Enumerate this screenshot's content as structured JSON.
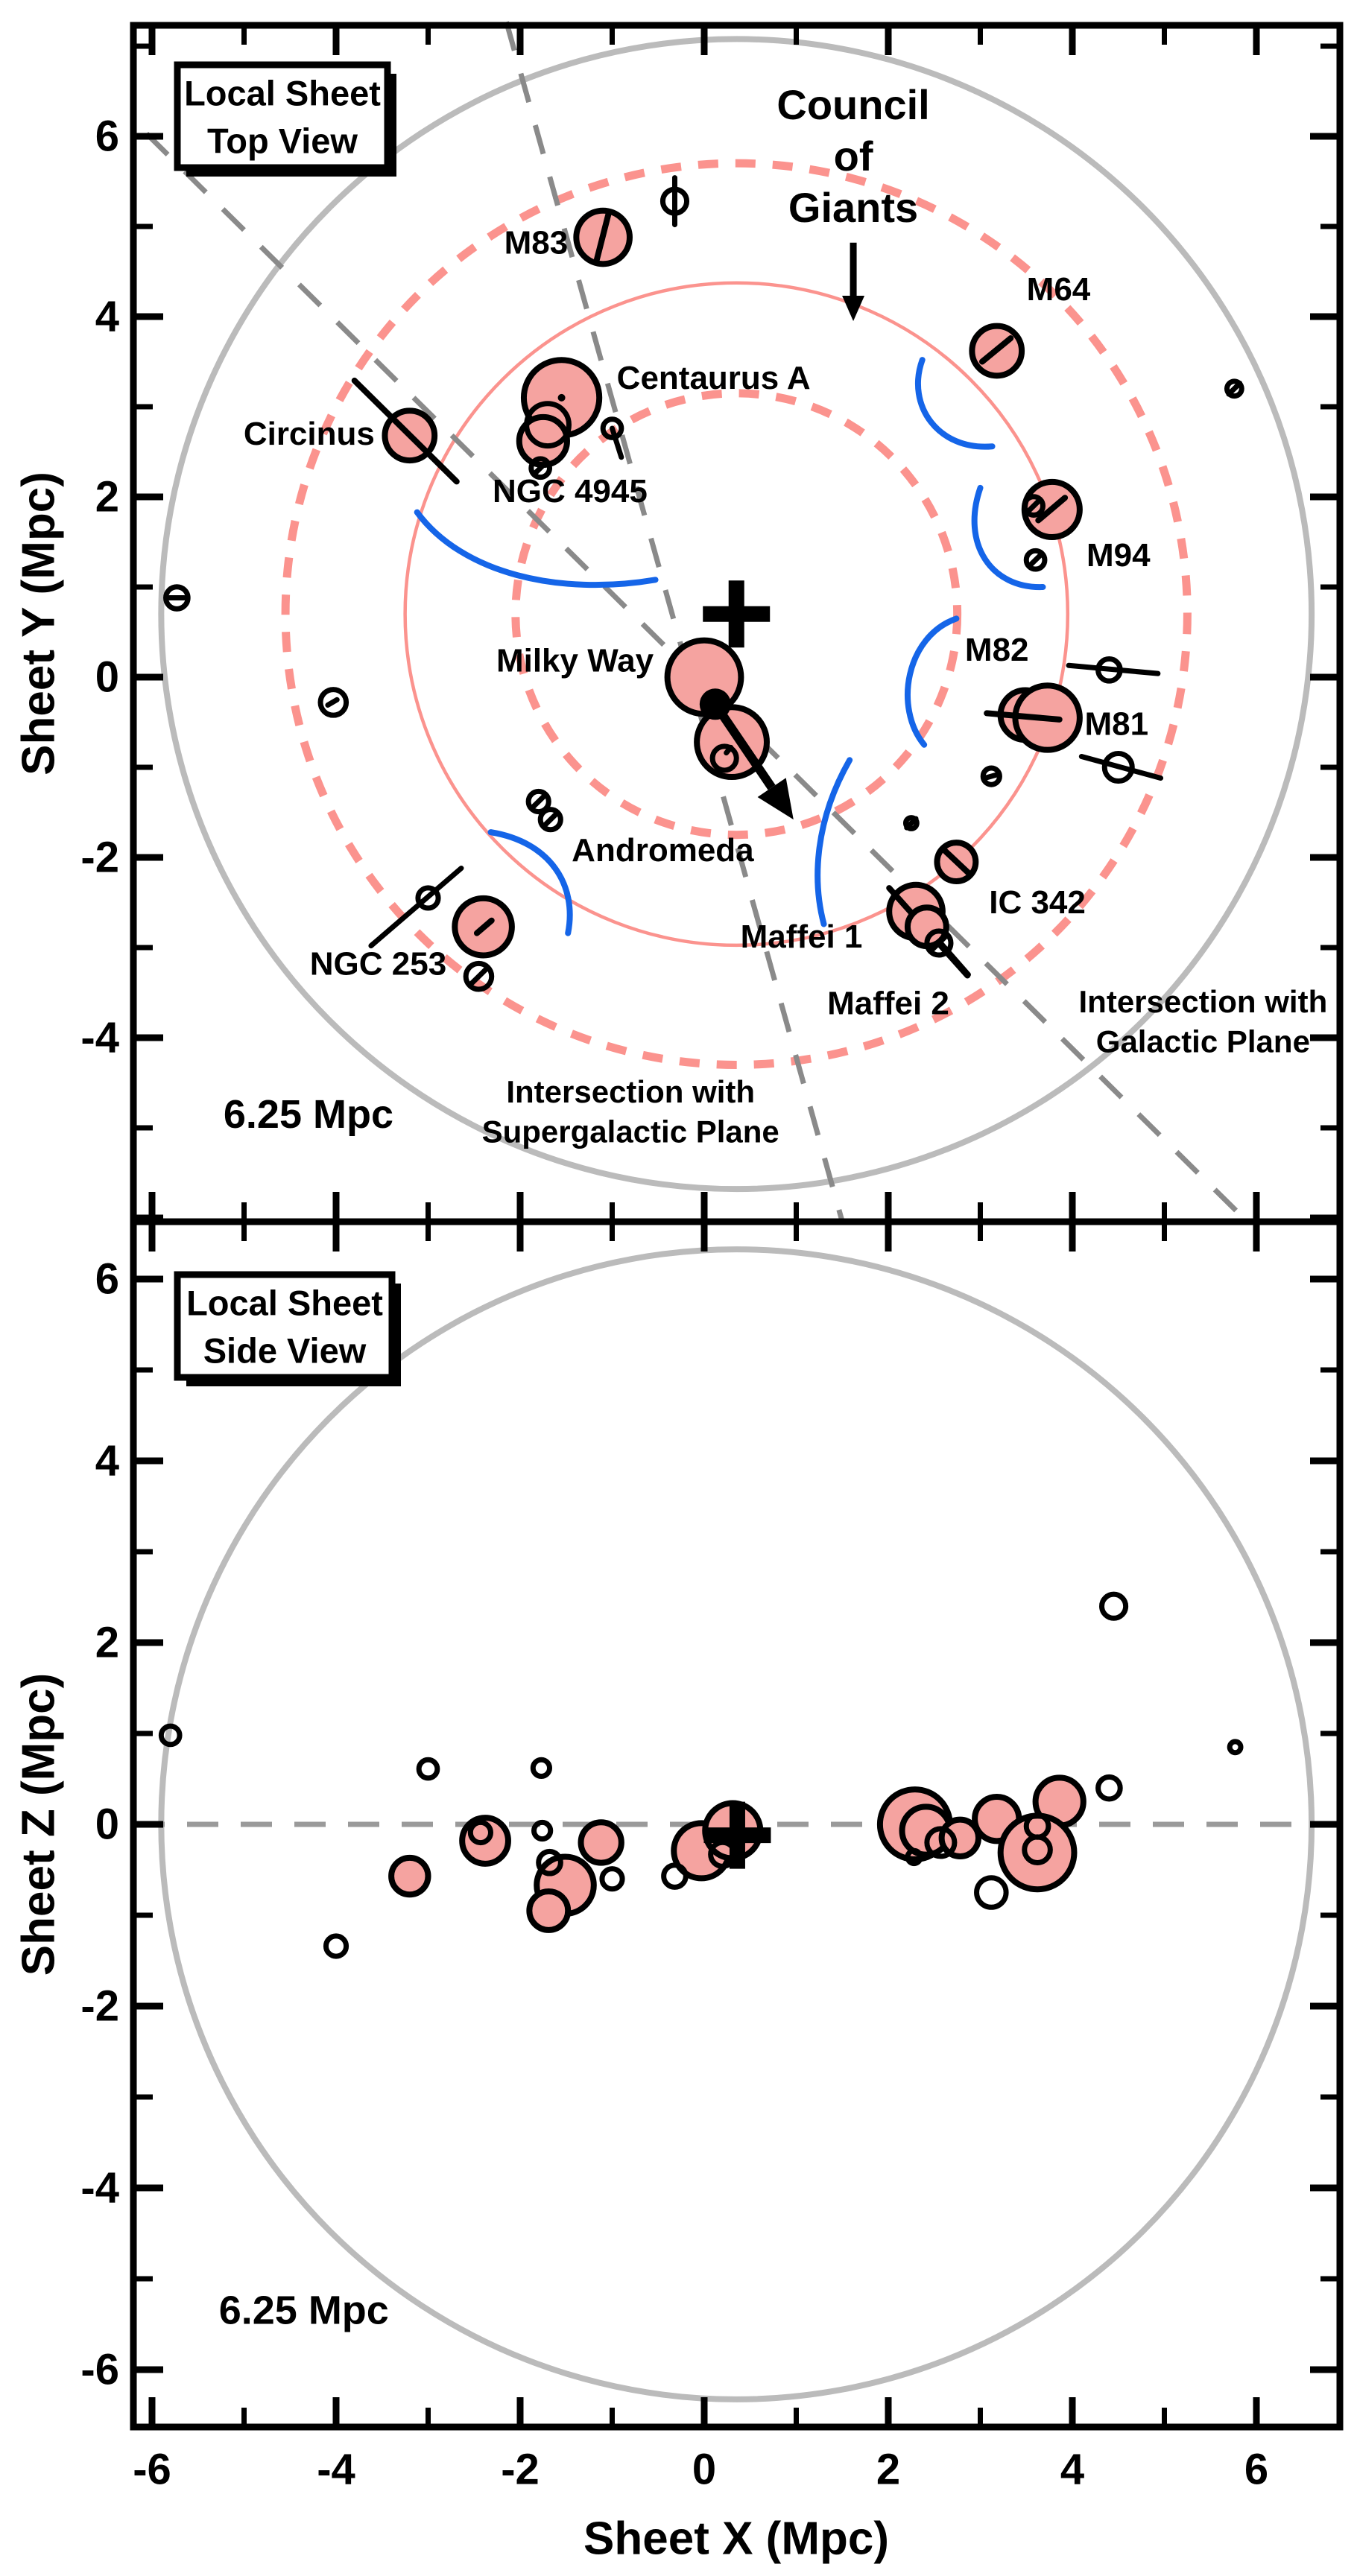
{
  "chart_data": {
    "type": "scatter",
    "title": "",
    "xlabel": "Sheet X (Mpc)",
    "xticks": [
      -6,
      -4,
      -2,
      0,
      2,
      4,
      6
    ],
    "xlim": [
      -6.2,
      6.9
    ],
    "colors": {
      "giant_fill": "#F5A3A0",
      "ring_pink": "#FB938E",
      "sheet_gray": "#BBBBBB",
      "plane_dash_gray": "#8A8A8A",
      "zero_dash_gray": "#9A9A9A",
      "arc_blue": "#1565E8",
      "ink": "#000000"
    },
    "top_panel": {
      "box_label": [
        "Local Sheet",
        "Top View"
      ],
      "ylabel": "Sheet Y (Mpc)",
      "yticks": [
        6,
        4,
        2,
        0,
        -2,
        -4
      ],
      "ylim": [
        -6.04,
        7.23
      ],
      "scale_label": "6.25 Mpc",
      "scale_label_pos": [
        -4.3,
        -4.85
      ],
      "council_label": [
        "Council",
        "of",
        "Giants"
      ],
      "council_label_pos": [
        1.62,
        6.35,
        5.78,
        5.21
      ],
      "council_arrow": [
        [
          1.62,
          4.82
        ],
        [
          1.62,
          3.95
        ]
      ],
      "supergalactic_label": [
        "Intersection with",
        "Supergalactic Plane"
      ],
      "supergalactic_label_pos": [
        -0.8,
        -4.6,
        -5.04
      ],
      "galactic_label": [
        "Intersection with",
        "Galactic Plane"
      ],
      "galactic_label_pos": [
        5.42,
        -3.6,
        -4.04
      ],
      "ring_center": [
        0.35,
        0.7
      ],
      "sheet_radius": 6.25,
      "council_ring_radius": 3.6,
      "council_ring_band": [
        2.4,
        4.9
      ],
      "galactic_plane_line": [
        [
          -6.06,
          6.03
        ],
        [
          5.9,
          -6.04
        ]
      ],
      "supergalactic_plane_line": [
        [
          -2.15,
          7.27
        ],
        [
          1.5,
          -6.04
        ]
      ],
      "milky_way_dot": [
        0.12,
        -0.3
      ],
      "motion_arrow": [
        [
          0.12,
          -0.3
        ],
        [
          0.97,
          -1.58
        ]
      ],
      "giants": [
        {
          "name": "Milky Way",
          "c": [
            0.0,
            0.0,
            0.4
          ],
          "label": [
            -0.55,
            0.18,
            "end"
          ]
        },
        {
          "name": "Andromeda",
          "c": [
            0.3,
            -0.72,
            0.38
          ],
          "label": [
            -0.45,
            -1.92,
            "middle"
          ]
        },
        {
          "name": "M83",
          "c": [
            -1.1,
            4.88,
            0.29
          ],
          "label": [
            -1.48,
            4.82,
            "end"
          ],
          "marks": [
            [
              -1.04,
              5.14,
              -1.17,
              4.62
            ]
          ]
        },
        {
          "name": "Centaurus A",
          "c": [
            -1.55,
            3.1,
            0.41
          ],
          "label": [
            -0.95,
            3.32,
            "start"
          ],
          "dot": true
        },
        {
          "name": "NGC 4945",
          "c": [
            -1.75,
            2.62,
            0.26
          ],
          "label": [
            -2.3,
            2.06,
            "start"
          ]
        },
        {
          "name": "Circinus",
          "c": [
            -3.2,
            2.68,
            0.27
          ],
          "label": [
            -3.58,
            2.7,
            "end"
          ],
          "marks": [
            [
              -3.8,
              3.29,
              -2.69,
              2.17
            ]
          ]
        },
        {
          "name": "M64",
          "c": [
            3.18,
            3.62,
            0.27
          ],
          "label": [
            3.85,
            4.3,
            "middle"
          ],
          "marks": [
            [
              3.02,
              3.5,
              3.33,
              3.76
            ]
          ]
        },
        {
          "name": "M94",
          "c": [
            3.78,
            1.86,
            0.3
          ],
          "label": [
            4.5,
            1.35,
            "middle"
          ],
          "marks": [
            [
              3.63,
              1.74,
              3.92,
              1.99
            ]
          ]
        },
        {
          "name": "M82",
          "c": [
            3.49,
            -0.42,
            0.27
          ],
          "label": [
            3.18,
            0.3,
            "middle"
          ]
        },
        {
          "name": "M81",
          "c": [
            3.73,
            -0.45,
            0.35
          ],
          "label": [
            4.48,
            -0.52,
            "middle"
          ],
          "marks": [
            [
              3.07,
              -0.4,
              3.86,
              -0.47
            ]
          ]
        },
        {
          "name": "IC 342",
          "c": [
            2.74,
            -2.05,
            0.21
          ],
          "label": [
            3.62,
            -2.5,
            "middle"
          ],
          "marks": [
            [
              2.62,
              -1.93,
              2.88,
              -2.18
            ]
          ]
        },
        {
          "name": "Maffei 1",
          "c": [
            2.3,
            -2.6,
            0.29
          ],
          "label": [
            1.72,
            -2.88,
            "end"
          ],
          "marks": [
            [
              2.01,
              -2.34,
              2.86,
              -3.31
            ]
          ]
        },
        {
          "name": "Maffei 2",
          "c": [
            2.42,
            -2.77,
            0.21
          ],
          "label": [
            2.0,
            -3.62,
            "middle"
          ]
        },
        {
          "name": "NGC 253",
          "c": [
            -2.4,
            -2.77,
            0.31
          ],
          "label": [
            -2.8,
            -3.18,
            "end"
          ],
          "marks": [
            [
              -2.47,
              -2.84,
              -2.31,
              -2.7
            ]
          ]
        }
      ],
      "dwarfs": [
        {
          "c": [
            -0.32,
            5.28,
            0.13
          ],
          "marks": [
            [
              -0.32,
              5.54,
              -0.32,
              5.02
            ]
          ]
        },
        {
          "c": [
            -1.7,
            2.8,
            0.23
          ]
        },
        {
          "c": [
            -1.78,
            2.32,
            0.1
          ],
          "marks": [
            [
              -1.84,
              2.26,
              -1.72,
              2.38
            ]
          ]
        },
        {
          "c": [
            -1.0,
            2.76,
            0.1
          ],
          "marks": [
            [
              -1.0,
              2.76,
              -0.9,
              2.44
            ]
          ]
        },
        {
          "c": [
            -5.73,
            0.88,
            0.12
          ],
          "marks": [
            [
              -5.81,
              0.88,
              -5.65,
              0.88
            ]
          ]
        },
        {
          "c": [
            -4.03,
            -0.28,
            0.14
          ],
          "marks": [
            [
              -4.09,
              -0.31,
              -3.99,
              -0.25
            ]
          ]
        },
        {
          "c": [
            -1.8,
            -1.38,
            0.11
          ],
          "marks": [
            [
              -1.86,
              -1.44,
              -1.74,
              -1.32
            ]
          ]
        },
        {
          "c": [
            -1.67,
            -1.58,
            0.11
          ],
          "marks": [
            [
              -1.73,
              -1.64,
              -1.61,
              -1.52
            ]
          ]
        },
        {
          "c": [
            -3.0,
            -2.45,
            0.11
          ],
          "marks": [
            [
              -3.62,
              -2.98,
              -2.64,
              -2.12
            ]
          ]
        },
        {
          "c": [
            -2.45,
            -3.32,
            0.14
          ],
          "marks": [
            [
              -2.53,
              -3.4,
              -2.37,
              -3.24
            ]
          ]
        },
        {
          "c": [
            0.22,
            -0.9,
            0.13
          ],
          "marks": [
            [
              0.24,
              -0.84,
              0.29,
              -0.78
            ]
          ]
        },
        {
          "c": [
            2.55,
            -2.95,
            0.13
          ],
          "marks": [
            [
              2.47,
              -3.03,
              2.63,
              -2.87
            ],
            [
              2.57,
              -2.95,
              2.87,
              -3.3
            ]
          ]
        },
        {
          "c": [
            2.25,
            -1.62,
            0.06
          ],
          "marks": [
            [
              2.2,
              -1.67,
              2.3,
              -1.57
            ]
          ]
        },
        {
          "c": [
            4.4,
            0.08,
            0.12
          ],
          "marks": [
            [
              3.96,
              0.13,
              4.93,
              0.04
            ]
          ]
        },
        {
          "c": [
            4.5,
            -1.0,
            0.15
          ],
          "marks": [
            [
              4.1,
              -0.88,
              4.96,
              -1.12
            ]
          ]
        },
        {
          "c": [
            3.12,
            -1.1,
            0.09
          ],
          "marks": [
            [
              3.05,
              -1.12,
              3.19,
              -1.08
            ]
          ]
        },
        {
          "c": [
            3.58,
            1.9,
            0.1
          ],
          "marks": [
            [
              3.51,
              1.83,
              3.65,
              1.97
            ]
          ]
        },
        {
          "c": [
            3.6,
            1.3,
            0.1
          ],
          "marks": [
            [
              3.53,
              1.23,
              3.67,
              1.37
            ]
          ]
        },
        {
          "c": [
            5.76,
            3.2,
            0.08
          ],
          "marks": [
            [
              5.7,
              3.14,
              5.82,
              3.26
            ]
          ]
        }
      ],
      "blue_arcs": [
        [
          [
            -3.12,
            1.83
          ],
          [
            -2.63,
            1.15
          ],
          [
            -1.58,
            0.9
          ],
          [
            -0.53,
            1.08
          ]
        ],
        [
          [
            2.37,
            3.52
          ],
          [
            2.19,
            3.01
          ],
          [
            2.55,
            2.51
          ],
          [
            3.13,
            2.56
          ]
        ],
        [
          [
            3.0,
            2.1
          ],
          [
            2.79,
            1.48
          ],
          [
            3.12,
            0.98
          ],
          [
            3.68,
            1.0
          ]
        ],
        [
          [
            -2.32,
            -1.72
          ],
          [
            -1.66,
            -1.83
          ],
          [
            -1.38,
            -2.32
          ],
          [
            -1.48,
            -2.84
          ]
        ],
        [
          [
            2.74,
            0.65
          ],
          [
            2.19,
            0.45
          ],
          [
            2.06,
            -0.34
          ],
          [
            2.39,
            -0.75
          ]
        ],
        [
          [
            1.58,
            -0.92
          ],
          [
            1.21,
            -1.58
          ],
          [
            1.17,
            -2.24
          ],
          [
            1.3,
            -2.74
          ]
        ]
      ]
    },
    "bottom_panel": {
      "box_label": [
        "Local Sheet",
        "Side View"
      ],
      "ylabel": "Sheet Z (Mpc)",
      "yticks": [
        6,
        4,
        2,
        0,
        -2,
        -4,
        -6
      ],
      "ylim": [
        -6.63,
        6.63
      ],
      "scale_label": "6.25 Mpc",
      "scale_label_pos": [
        -4.35,
        -5.35
      ],
      "sheet_center": [
        0.35,
        0.0
      ],
      "sheet_radius": 6.25,
      "zero_line": 0,
      "plus_pos": [
        0.36,
        -0.12
      ],
      "giants": [
        {
          "name": "Circinus",
          "c": [
            -3.2,
            -0.57,
            0.2
          ]
        },
        {
          "name": "NGC 253",
          "c": [
            -2.38,
            -0.18,
            0.25
          ]
        },
        {
          "name": "Centaurus A",
          "c": [
            -1.51,
            -0.67,
            0.31
          ]
        },
        {
          "name": "NGC 4945",
          "c": [
            -1.69,
            -0.95,
            0.21
          ]
        },
        {
          "name": "M83",
          "c": [
            -1.12,
            -0.2,
            0.22
          ]
        },
        {
          "name": "Milky Way",
          "c": [
            -0.03,
            -0.29,
            0.3
          ]
        },
        {
          "name": "Andromeda",
          "c": [
            0.31,
            -0.07,
            0.3
          ]
        },
        {
          "name": "Maffei 1",
          "c": [
            2.29,
            0.0,
            0.38
          ]
        },
        {
          "name": "Maffei 2",
          "c": [
            2.41,
            -0.07,
            0.26
          ]
        },
        {
          "name": "IC 342",
          "c": [
            2.78,
            -0.15,
            0.2
          ]
        },
        {
          "name": "M64",
          "c": [
            3.18,
            0.06,
            0.24
          ]
        },
        {
          "name": "M94",
          "c": [
            3.86,
            0.25,
            0.26
          ]
        },
        {
          "name": "M81",
          "c": [
            3.62,
            -0.31,
            0.4
          ]
        }
      ],
      "dwarfs": [
        {
          "c": [
            -3.0,
            0.61,
            0.1
          ]
        },
        {
          "c": [
            -1.77,
            0.62,
            0.09
          ]
        },
        {
          "c": [
            -2.43,
            -0.09,
            0.11
          ]
        },
        {
          "c": [
            -1.76,
            -0.07,
            0.09
          ]
        },
        {
          "c": [
            -1.68,
            -0.42,
            0.12
          ]
        },
        {
          "c": [
            -1.0,
            -0.6,
            0.11
          ]
        },
        {
          "c": [
            0.2,
            -0.33,
            0.13
          ]
        },
        {
          "c": [
            -0.32,
            -0.57,
            0.12
          ]
        },
        {
          "c": [
            2.57,
            -0.2,
            0.15
          ]
        },
        {
          "c": [
            2.28,
            -0.36,
            0.07
          ]
        },
        {
          "c": [
            3.62,
            -0.02,
            0.12
          ]
        },
        {
          "c": [
            3.62,
            -0.28,
            0.14
          ]
        },
        {
          "c": [
            4.4,
            0.4,
            0.12
          ]
        },
        {
          "c": [
            3.12,
            -0.75,
            0.16
          ]
        },
        {
          "c": [
            -5.8,
            0.98,
            0.1
          ]
        },
        {
          "c": [
            -4.0,
            -1.34,
            0.11
          ]
        },
        {
          "c": [
            4.45,
            2.4,
            0.13
          ]
        },
        {
          "c": [
            5.77,
            0.85,
            0.06
          ]
        }
      ]
    }
  }
}
